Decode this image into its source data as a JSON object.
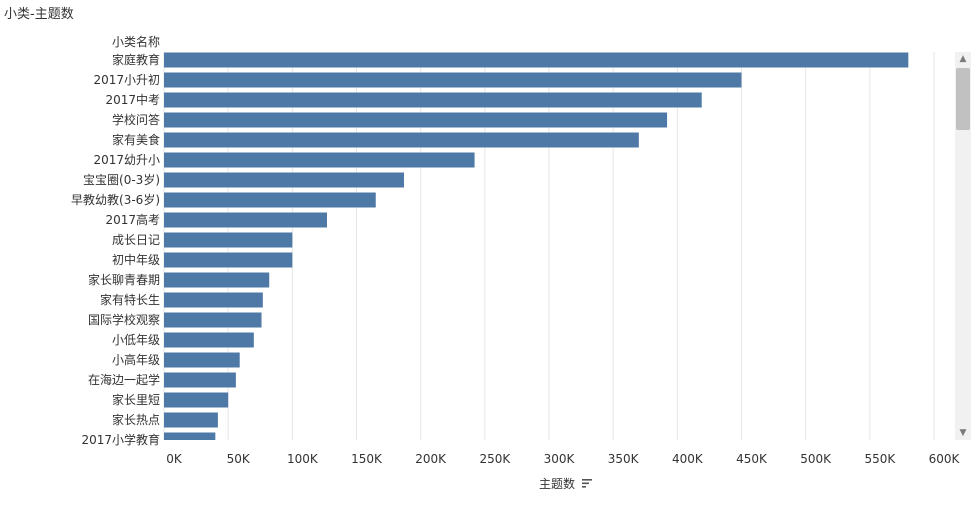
{
  "sheet": {
    "title": "小类-主题数"
  },
  "colors": {
    "bar": "#4e79a7",
    "grid": "#e6e6e6",
    "text": "#333333"
  },
  "chart_data": {
    "type": "bar",
    "orientation": "horizontal",
    "row_header": "小类名称",
    "xlabel": "主题数",
    "sort_icon": "sort-descending-icon",
    "xlim": [
      0,
      600000
    ],
    "x_ticks": [
      0,
      50000,
      100000,
      150000,
      200000,
      250000,
      300000,
      350000,
      400000,
      450000,
      500000,
      550000,
      600000
    ],
    "x_tick_labels": [
      "0K",
      "50K",
      "100K",
      "150K",
      "200K",
      "250K",
      "300K",
      "350K",
      "400K",
      "450K",
      "500K",
      "550K",
      "600K"
    ],
    "grid": true,
    "categories": [
      "家庭教育",
      "2017小升初",
      "2017中考",
      "学校问答",
      "家有美食",
      "2017幼升小",
      "宝宝圈(0-3岁)",
      "早教幼教(3-6岁)",
      "2017高考",
      "成长日记",
      "初中年级",
      "家长聊青春期",
      "家有特长生",
      "国际学校观察",
      "小低年级",
      "小高年级",
      "在海边一起学",
      "家长里短",
      "家长热点",
      "2017小学教育"
    ],
    "values": [
      580000,
      450000,
      419000,
      392000,
      370000,
      242000,
      187000,
      165000,
      127000,
      100000,
      100000,
      82000,
      77000,
      76000,
      70000,
      59000,
      56000,
      50000,
      42000,
      40000
    ]
  }
}
